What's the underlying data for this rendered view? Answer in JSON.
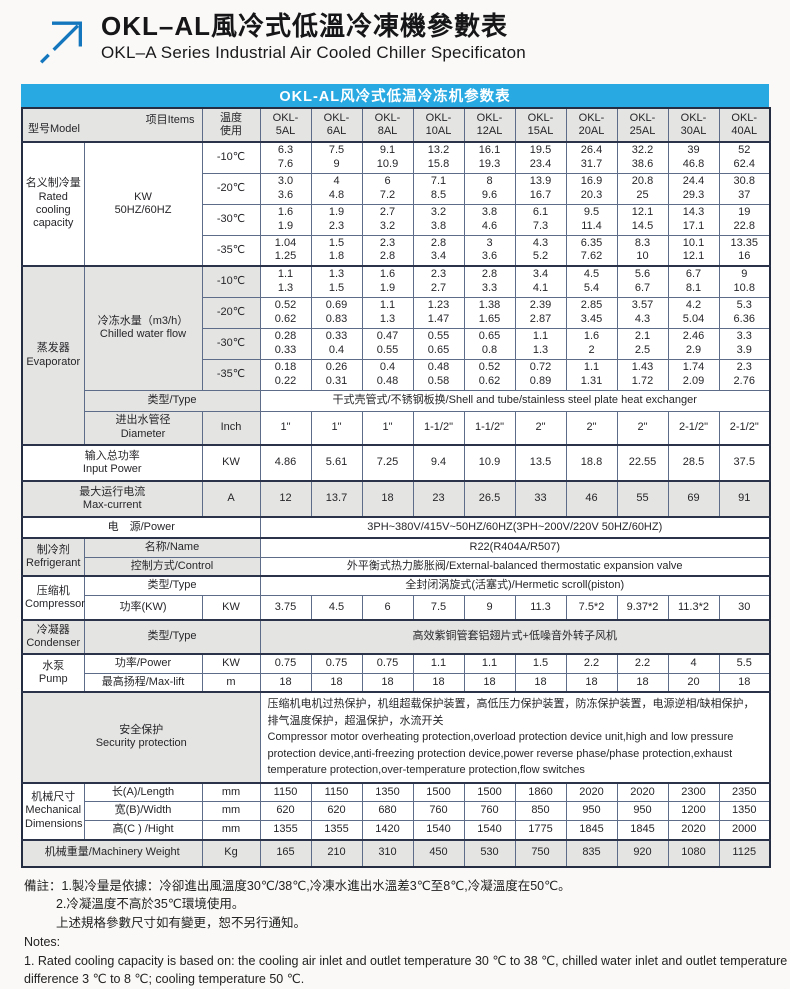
{
  "header": {
    "title_cn": "OKL–AL風冷式低溫冷凍機參數表",
    "title_en": "OKL–A Series Industrial Air Cooled Chiller Specificaton"
  },
  "colors": {
    "accent_blue": "#29a9e1",
    "grid_line": "#5d6c89",
    "shade_gray": "#e4e4e2"
  },
  "table": {
    "banner": "OKL-AL风冷式低温冷冻机参数表",
    "rows": [
      {
        "cls": "gr",
        "cells": [
          {
            "tl": "型号Model",
            "br": "项目Items",
            "cs": 2,
            "n": "model-items-diagonal-header"
          },
          {
            "t": "温度\n使用",
            "n": "temperature-use-header"
          },
          {
            "t": "OKL-\n5AL",
            "n": "model-header"
          },
          {
            "t": "OKL-\n6AL",
            "n": "model-header"
          },
          {
            "t": "OKL-\n8AL",
            "n": "model-header"
          },
          {
            "t": "OKL-\n10AL",
            "n": "model-header"
          },
          {
            "t": "OKL-\n12AL",
            "n": "model-header"
          },
          {
            "t": "OKL-\n15AL",
            "n": "model-header"
          },
          {
            "t": "OKL-\n20AL",
            "n": "model-header"
          },
          {
            "t": "OKL-\n25AL",
            "n": "model-header"
          },
          {
            "t": "OKL-\n30AL",
            "n": "model-header"
          },
          {
            "t": "OKL-\n40AL",
            "n": "model-header"
          }
        ]
      },
      {
        "cls": "bt",
        "cells": [
          {
            "t": "名义制冷量\nRated\ncooling\ncapacity",
            "rs": 4,
            "n": "section-label"
          },
          {
            "t": "KW\n50HZ/60HZ",
            "rs": 4,
            "n": "unit-label"
          },
          {
            "t": "-10℃",
            "n": "temp-label"
          },
          {
            "t": "6.3\n7.6"
          },
          {
            "t": "7.5\n9"
          },
          {
            "t": "9.1\n10.9"
          },
          {
            "t": "13.2\n15.8"
          },
          {
            "t": "16.1\n19.3"
          },
          {
            "t": "19.5\n23.4"
          },
          {
            "t": "26.4\n31.7"
          },
          {
            "t": "32.2\n38.6"
          },
          {
            "t": "39\n46.8"
          },
          {
            "t": "52\n62.4"
          }
        ]
      },
      {
        "cells": [
          {
            "t": "-20℃",
            "n": "temp-label"
          },
          {
            "t": "3.0\n3.6"
          },
          {
            "t": "4\n4.8"
          },
          {
            "t": "6\n7.2"
          },
          {
            "t": "7.1\n8.5"
          },
          {
            "t": "8\n9.6"
          },
          {
            "t": "13.9\n16.7"
          },
          {
            "t": "16.9\n20.3"
          },
          {
            "t": "20.8\n25"
          },
          {
            "t": "24.4\n29.3"
          },
          {
            "t": "30.8\n37"
          }
        ]
      },
      {
        "cells": [
          {
            "t": "-30℃",
            "n": "temp-label"
          },
          {
            "t": "1.6\n1.9"
          },
          {
            "t": "1.9\n2.3"
          },
          {
            "t": "2.7\n3.2"
          },
          {
            "t": "3.2\n3.8"
          },
          {
            "t": "3.8\n4.6"
          },
          {
            "t": "6.1\n7.3"
          },
          {
            "t": "9.5\n11.4"
          },
          {
            "t": "12.1\n14.5"
          },
          {
            "t": "14.3\n17.1"
          },
          {
            "t": "19\n22.8"
          }
        ]
      },
      {
        "cells": [
          {
            "t": "-35℃",
            "n": "temp-label"
          },
          {
            "t": "1.04\n1.25"
          },
          {
            "t": "1.5\n1.8"
          },
          {
            "t": "2.3\n2.8"
          },
          {
            "t": "2.8\n3.4"
          },
          {
            "t": "3\n3.6"
          },
          {
            "t": "4.3\n5.2"
          },
          {
            "t": "6.35\n7.62"
          },
          {
            "t": "8.3\n10"
          },
          {
            "t": "10.1\n12.1"
          },
          {
            "t": "13.35\n16"
          }
        ]
      },
      {
        "cls": "bt",
        "cells": [
          {
            "t": "蒸发器\nEvaporator",
            "rs": 6,
            "cls": "g",
            "n": "section-label"
          },
          {
            "t": "冷冻水量（m3/h）\nChilled water flow",
            "rs": 4,
            "cls": "g",
            "n": "item-label"
          },
          {
            "t": "-10℃",
            "cls": "g",
            "n": "temp-label"
          },
          {
            "t": "1.1\n1.3"
          },
          {
            "t": "1.3\n1.5"
          },
          {
            "t": "1.6\n1.9"
          },
          {
            "t": "2.3\n2.7"
          },
          {
            "t": "2.8\n3.3"
          },
          {
            "t": "3.4\n4.1"
          },
          {
            "t": "4.5\n5.4"
          },
          {
            "t": "5.6\n6.7"
          },
          {
            "t": "6.7\n8.1"
          },
          {
            "t": "9\n10.8"
          }
        ]
      },
      {
        "cells": [
          {
            "t": "-20℃",
            "cls": "g",
            "n": "temp-label"
          },
          {
            "t": "0.52\n0.62"
          },
          {
            "t": "0.69\n0.83"
          },
          {
            "t": "1.1\n1.3"
          },
          {
            "t": "1.23\n1.47"
          },
          {
            "t": "1.38\n1.65"
          },
          {
            "t": "2.39\n2.87"
          },
          {
            "t": "2.85\n3.45"
          },
          {
            "t": "3.57\n4.3"
          },
          {
            "t": "4.2\n5.04"
          },
          {
            "t": "5.3\n6.36"
          }
        ]
      },
      {
        "cells": [
          {
            "t": "-30℃",
            "cls": "g",
            "n": "temp-label"
          },
          {
            "t": "0.28\n0.33"
          },
          {
            "t": "0.33\n0.4"
          },
          {
            "t": "0.47\n0.55"
          },
          {
            "t": "0.55\n0.65"
          },
          {
            "t": "0.65\n0.8"
          },
          {
            "t": "1.1\n1.3"
          },
          {
            "t": "1.6\n2"
          },
          {
            "t": "2.1\n2.5"
          },
          {
            "t": "2.46\n2.9"
          },
          {
            "t": "3.3\n3.9"
          }
        ]
      },
      {
        "cells": [
          {
            "t": "-35℃",
            "cls": "g",
            "n": "temp-label"
          },
          {
            "t": "0.18\n0.22"
          },
          {
            "t": "0.26\n0.31"
          },
          {
            "t": "0.4\n0.48"
          },
          {
            "t": "0.48\n0.58"
          },
          {
            "t": "0.52\n0.62"
          },
          {
            "t": "0.72\n0.89"
          },
          {
            "t": "1.1\n1.31"
          },
          {
            "t": "1.43\n1.72"
          },
          {
            "t": "1.74\n2.09"
          },
          {
            "t": "2.3\n2.76"
          }
        ]
      },
      {
        "cells": [
          {
            "t": "类型/Type",
            "cs": 2,
            "cls": "g",
            "n": "item-label"
          },
          {
            "t": "干式壳管式/不锈钢板换/Shell and tube/stainless steel plate heat exchanger",
            "cs": 10,
            "n": "evaporator-type-value"
          }
        ]
      },
      {
        "cells": [
          {
            "t": "进出水管径\nDiameter",
            "cls": "g",
            "n": "item-label"
          },
          {
            "t": "Inch",
            "cls": "g",
            "n": "unit-label"
          },
          {
            "t": "1\""
          },
          {
            "t": "1\""
          },
          {
            "t": "1\""
          },
          {
            "t": "1-1/2\""
          },
          {
            "t": "1-1/2\""
          },
          {
            "t": "2\""
          },
          {
            "t": "2\""
          },
          {
            "t": "2\""
          },
          {
            "t": "2-1/2\""
          },
          {
            "t": "2-1/2\""
          }
        ]
      },
      {
        "cls": "bt",
        "cells": [
          {
            "t": "输入总功率\nInput Power",
            "cs": 2,
            "n": "item-label"
          },
          {
            "t": "KW",
            "n": "unit-label"
          },
          {
            "t": "4.86"
          },
          {
            "t": "5.61"
          },
          {
            "t": "7.25"
          },
          {
            "t": "9.4"
          },
          {
            "t": "10.9"
          },
          {
            "t": "13.5"
          },
          {
            "t": "18.8"
          },
          {
            "t": "22.55"
          },
          {
            "t": "28.5"
          },
          {
            "t": "37.5"
          }
        ]
      },
      {
        "cls": "gr bt",
        "cells": [
          {
            "t": "最大运行电流\nMax-current",
            "cs": 2,
            "n": "item-label"
          },
          {
            "t": "A",
            "n": "unit-label"
          },
          {
            "t": "12"
          },
          {
            "t": "13.7"
          },
          {
            "t": "18"
          },
          {
            "t": "23"
          },
          {
            "t": "26.5"
          },
          {
            "t": "33"
          },
          {
            "t": "46"
          },
          {
            "t": "55"
          },
          {
            "t": "69"
          },
          {
            "t": "91"
          }
        ]
      },
      {
        "cls": "bt",
        "cells": [
          {
            "t": "电　源/Power",
            "cs": 3,
            "n": "item-label"
          },
          {
            "t": "3PH~380V/415V~50HZ/60HZ(3PH~200V/220V  50HZ/60HZ)",
            "cs": 10,
            "n": "power-supply-value"
          }
        ]
      },
      {
        "cls": "bt",
        "cells": [
          {
            "t": "制冷剂\nRefrigerant",
            "rs": 2,
            "cls": "g",
            "n": "section-label"
          },
          {
            "t": "名称/Name",
            "cs": 2,
            "cls": "g",
            "n": "item-label"
          },
          {
            "t": "R22(R404A/R507)",
            "cs": 10,
            "n": "refrigerant-name-value"
          }
        ]
      },
      {
        "cells": [
          {
            "t": "控制方式/Control",
            "cs": 2,
            "cls": "g",
            "n": "item-label"
          },
          {
            "t": "外平衡式热力膨胀阀/External-balanced thermostatic expansion valve",
            "cs": 10,
            "n": "control-value"
          }
        ]
      },
      {
        "cls": "bt",
        "cells": [
          {
            "t": "压缩机\nCompressor",
            "rs": 2,
            "n": "section-label"
          },
          {
            "t": "类型/Type",
            "cs": 2,
            "n": "item-label"
          },
          {
            "t": "全封闭涡旋式(活塞式)/Hermetic scroll(piston)",
            "cs": 10,
            "n": "compressor-type-value"
          }
        ]
      },
      {
        "cells": [
          {
            "t": "功率(KW)",
            "n": "item-label"
          },
          {
            "t": "KW",
            "n": "unit-label"
          },
          {
            "t": "3.75"
          },
          {
            "t": "4.5"
          },
          {
            "t": "6"
          },
          {
            "t": "7.5"
          },
          {
            "t": "9"
          },
          {
            "t": "11.3"
          },
          {
            "t": "7.5*2"
          },
          {
            "t": "9.37*2"
          },
          {
            "t": "11.3*2"
          },
          {
            "t": "30"
          }
        ]
      },
      {
        "cls": "gr bt",
        "cells": [
          {
            "t": "冷凝器\nCondenser",
            "n": "section-label"
          },
          {
            "t": "类型/Type",
            "cs": 2,
            "n": "item-label"
          },
          {
            "t": "高效紫铜管套铝翅片式+低噪音外转子风机",
            "cs": 10,
            "n": "condenser-type-value"
          }
        ]
      },
      {
        "cls": "bt",
        "cells": [
          {
            "t": "水泵\nPump",
            "rs": 2,
            "n": "section-label"
          },
          {
            "t": "功率/Power",
            "n": "item-label"
          },
          {
            "t": "KW",
            "n": "unit-label"
          },
          {
            "t": "0.75"
          },
          {
            "t": "0.75"
          },
          {
            "t": "0.75"
          },
          {
            "t": "1.1"
          },
          {
            "t": "1.1"
          },
          {
            "t": "1.5"
          },
          {
            "t": "2.2"
          },
          {
            "t": "2.2"
          },
          {
            "t": "4"
          },
          {
            "t": "5.5"
          }
        ]
      },
      {
        "cells": [
          {
            "t": "最高扬程/Max-lift",
            "n": "item-label"
          },
          {
            "t": "m",
            "n": "unit-label"
          },
          {
            "t": "18"
          },
          {
            "t": "18"
          },
          {
            "t": "18"
          },
          {
            "t": "18"
          },
          {
            "t": "18"
          },
          {
            "t": "18"
          },
          {
            "t": "18"
          },
          {
            "t": "18"
          },
          {
            "t": "20"
          },
          {
            "t": "18"
          }
        ]
      },
      {
        "cls": "bt",
        "cells": [
          {
            "t": "安全保护\nSecurity protection",
            "cs": 3,
            "cls": "g",
            "n": "section-label"
          },
          {
            "t": "压缩机电机过热保护，机组超载保护装置，高低压力保护装置，防冻保护装置，电源逆相/缺相保护，排气温度保护，超温保护，水流开关\n Compressor motor overheating protection,overload protection device unit,high and low pressure protection device,anti-freezing protection device,power reverse phase/phase protection,exhaust temperature protection,over-temperature protection,flow switches",
            "cs": 10,
            "cls": "left",
            "n": "security-protection-value"
          }
        ]
      },
      {
        "cls": "bt",
        "cells": [
          {
            "t": "机械尺寸\nMechanical\nDimensions",
            "rs": 3,
            "n": "section-label"
          },
          {
            "t": "长(A)/Length",
            "n": "item-label"
          },
          {
            "t": "mm",
            "n": "unit-label"
          },
          {
            "t": "1150"
          },
          {
            "t": "1150"
          },
          {
            "t": "1350"
          },
          {
            "t": "1500"
          },
          {
            "t": "1500"
          },
          {
            "t": "1860"
          },
          {
            "t": "2020"
          },
          {
            "t": "2020"
          },
          {
            "t": "2300"
          },
          {
            "t": "2350"
          }
        ]
      },
      {
        "cells": [
          {
            "t": "宽(B)/Width",
            "n": "item-label"
          },
          {
            "t": "mm",
            "n": "unit-label"
          },
          {
            "t": "620"
          },
          {
            "t": "620"
          },
          {
            "t": "680"
          },
          {
            "t": "760"
          },
          {
            "t": "760"
          },
          {
            "t": "850"
          },
          {
            "t": "950"
          },
          {
            "t": "950"
          },
          {
            "t": "1200"
          },
          {
            "t": "1350"
          }
        ]
      },
      {
        "cells": [
          {
            "t": "高(C ) /Hight",
            "n": "item-label"
          },
          {
            "t": "mm",
            "n": "unit-label"
          },
          {
            "t": "1355"
          },
          {
            "t": "1355"
          },
          {
            "t": "1420"
          },
          {
            "t": "1540"
          },
          {
            "t": "1540"
          },
          {
            "t": "1775"
          },
          {
            "t": "1845"
          },
          {
            "t": "1845"
          },
          {
            "t": "2020"
          },
          {
            "t": "2000"
          }
        ]
      },
      {
        "cls": "gr bt",
        "cells": [
          {
            "t": "机械重量/Machinery Weight",
            "cs": 2,
            "n": "item-label"
          },
          {
            "t": "Kg",
            "n": "unit-label"
          },
          {
            "t": "165"
          },
          {
            "t": "210"
          },
          {
            "t": "310"
          },
          {
            "t": "450"
          },
          {
            "t": "530"
          },
          {
            "t": "750"
          },
          {
            "t": "835"
          },
          {
            "t": "920"
          },
          {
            "t": "1080"
          },
          {
            "t": "1125"
          }
        ]
      }
    ]
  },
  "notes": {
    "lines": [
      "備註：1.製冷量是依據：冷卻進出風溫度30℃/38℃,冷凍水進出水溫差3℃至8℃,冷凝溫度在50℃。",
      "　　  2.冷凝溫度不高於35℃環境使用。",
      "　　  上述規格參數尺寸如有變更，恕不另行通知。",
      "Notes:",
      "1. Rated cooling capacity is based on: the cooling air inlet and outlet temperature 30 ℃ to 38 ℃, chilled water inlet and outlet temperature",
      "difference 3 ℃ to 8 ℃; cooling temperature 50 ℃."
    ]
  }
}
